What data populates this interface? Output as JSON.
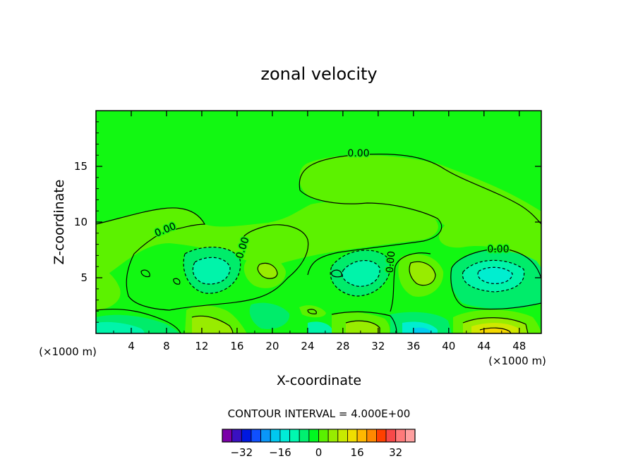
{
  "chart_data": {
    "type": "contour",
    "title": "zonal velocity",
    "xlabel": "X-coordinate",
    "ylabel": "Z-coordinate",
    "x_unit": "(×1000 m)",
    "x_unit_right": "(×1000 m)",
    "xlim": [
      0,
      50.5
    ],
    "ylim": [
      0,
      20
    ],
    "x_ticks": [
      4,
      8,
      12,
      16,
      20,
      24,
      28,
      32,
      36,
      40,
      44,
      48
    ],
    "y_ticks": [
      5,
      10,
      15
    ],
    "contour_interval_text": "CONTOUR INTERVAL = 4.000E+00",
    "contour_interval": 4,
    "zero_contour_label": "0.00",
    "colorbar": {
      "labels": [
        "-32",
        "-16",
        "0",
        "16",
        "32"
      ],
      "label_values": [
        -32,
        -16,
        0,
        16,
        32
      ],
      "colors": [
        "#7a00a8",
        "#3a10c0",
        "#0018e0",
        "#1050ff",
        "#0a96f8",
        "#00c8f0",
        "#00ecd8",
        "#00f8b0",
        "#00f070",
        "#00f820",
        "#5af000",
        "#98ec00",
        "#c8ea00",
        "#f0de00",
        "#ffb800",
        "#ff8800",
        "#ff4000",
        "#f84848",
        "#ff7a7a",
        "#ffa0a0"
      ]
    },
    "field_colors": {
      "background": "#12f812",
      "level_minus_4": "#00ec6a",
      "level_minus_8": "#00f4aa",
      "level_minus_12": "#00eed0",
      "level_minus_16": "#00cdf0",
      "level_plus_4": "#5cf200",
      "level_plus_8": "#98ec00",
      "level_plus_12": "#d0e800",
      "level_plus_16": "#f4d800"
    }
  }
}
